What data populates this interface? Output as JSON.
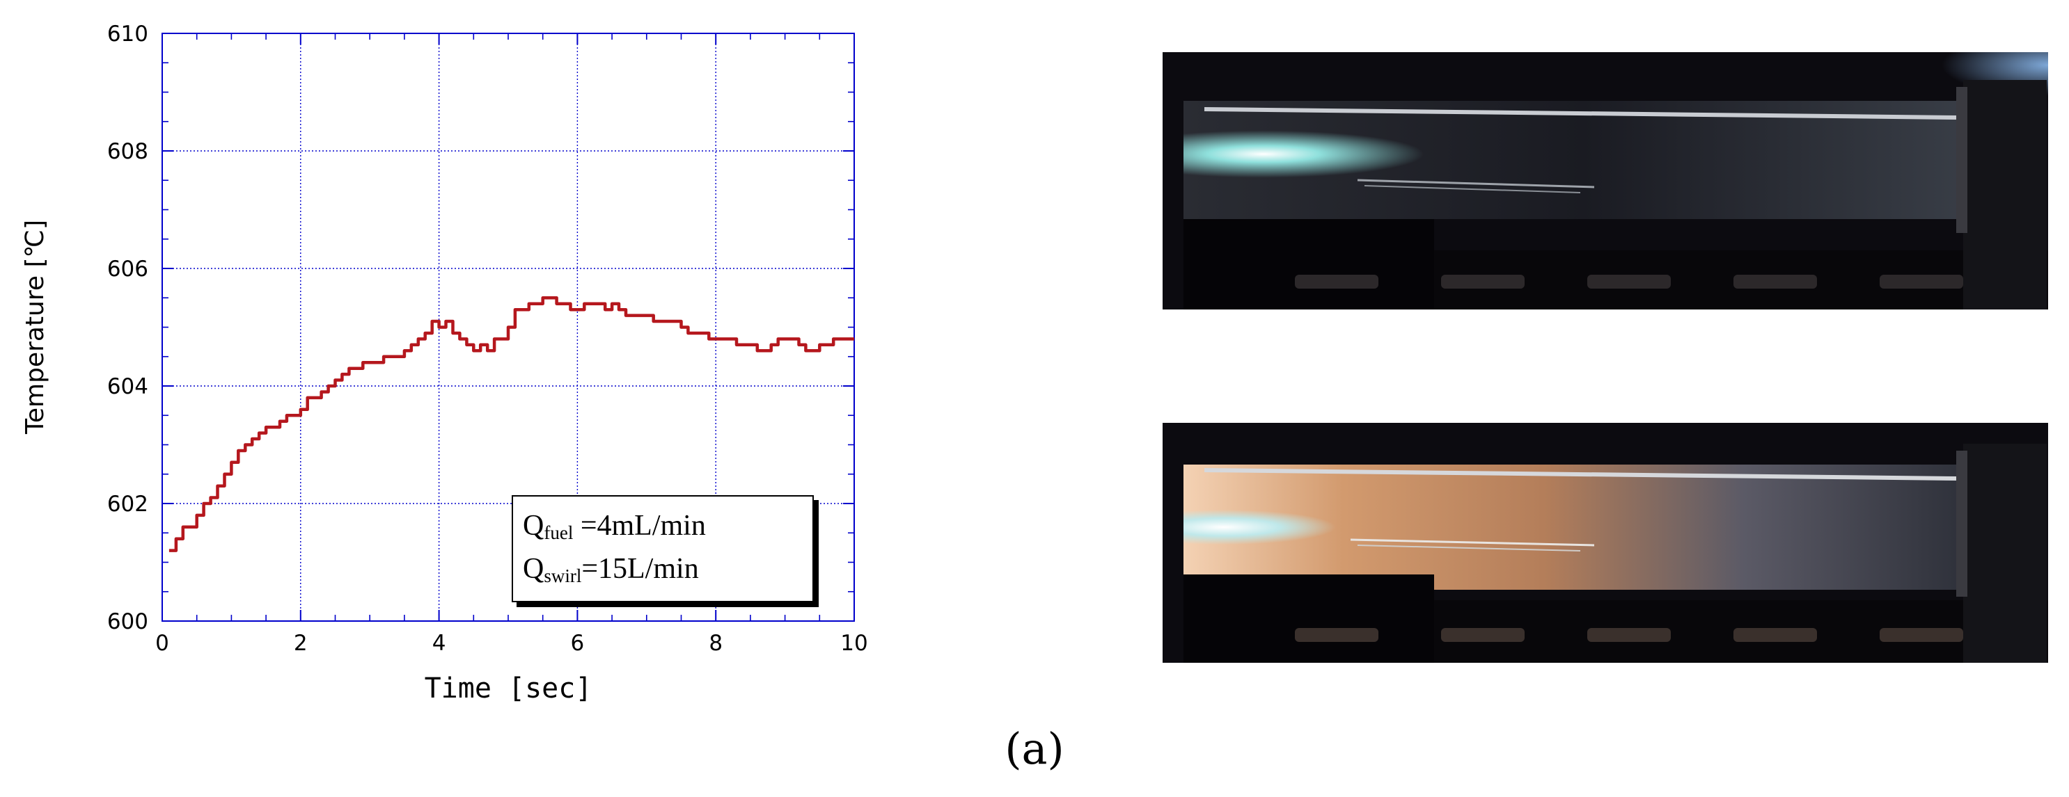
{
  "chart_data": {
    "type": "line",
    "xlabel": "Time [sec]",
    "ylabel": "Temperature [℃]",
    "xlim": [
      0,
      10
    ],
    "ylim": [
      600,
      610
    ],
    "xticks": [
      "0",
      "2",
      "4",
      "6",
      "8",
      "10"
    ],
    "yticks": [
      "600",
      "602",
      "604",
      "606",
      "608",
      "610"
    ],
    "grid": true,
    "line_color": "#b5171d",
    "series": [
      {
        "x": [
          0.1,
          0.2,
          0.3,
          0.4,
          0.5,
          0.6,
          0.7,
          0.8,
          0.9,
          1.0,
          1.1,
          1.2,
          1.3,
          1.4,
          1.5,
          1.6,
          1.7,
          1.8,
          1.9,
          2.0,
          2.1,
          2.2,
          2.3,
          2.4,
          2.5,
          2.6,
          2.7,
          2.8,
          2.9,
          3.0,
          3.1,
          3.2,
          3.3,
          3.4,
          3.5,
          3.6,
          3.7,
          3.8,
          3.9,
          4.0,
          4.1,
          4.2,
          4.3,
          4.4,
          4.5,
          4.6,
          4.7,
          4.8,
          4.9,
          5.0,
          5.1,
          5.2,
          5.3,
          5.4,
          5.5,
          5.6,
          5.7,
          5.8,
          5.9,
          6.0,
          6.1,
          6.2,
          6.3,
          6.4,
          6.5,
          6.6,
          6.7,
          6.8,
          6.9,
          7.0,
          7.1,
          7.2,
          7.3,
          7.4,
          7.5,
          7.6,
          7.7,
          7.8,
          7.9,
          8.0,
          8.1,
          8.2,
          8.3,
          8.4,
          8.5,
          8.6,
          8.7,
          8.8,
          8.9,
          9.0,
          9.1,
          9.2,
          9.3,
          9.4,
          9.5,
          9.6,
          9.7,
          9.8,
          9.9,
          10.0
        ],
        "y": [
          601.2,
          601.4,
          601.6,
          601.6,
          601.8,
          602.0,
          602.1,
          602.3,
          602.5,
          602.7,
          602.9,
          603.0,
          603.1,
          603.2,
          603.3,
          603.3,
          603.4,
          603.5,
          603.5,
          603.6,
          603.8,
          603.8,
          603.9,
          604.0,
          604.1,
          604.2,
          604.3,
          604.3,
          604.4,
          604.4,
          604.4,
          604.5,
          604.5,
          604.5,
          604.6,
          604.7,
          604.8,
          604.9,
          605.1,
          605.0,
          605.1,
          604.9,
          604.8,
          604.7,
          604.6,
          604.7,
          604.6,
          604.8,
          604.8,
          605.0,
          605.3,
          605.3,
          605.4,
          605.4,
          605.5,
          605.5,
          605.4,
          605.4,
          605.3,
          605.3,
          605.4,
          605.4,
          605.4,
          605.3,
          605.4,
          605.3,
          605.2,
          605.2,
          605.2,
          605.2,
          605.1,
          605.1,
          605.1,
          605.1,
          605.0,
          604.9,
          604.9,
          604.9,
          604.8,
          604.8,
          604.8,
          604.8,
          604.7,
          604.7,
          604.7,
          604.6,
          604.6,
          604.7,
          604.8,
          604.8,
          604.8,
          604.7,
          604.6,
          604.6,
          604.7,
          604.7,
          604.8,
          604.8,
          604.8,
          604.8
        ]
      }
    ]
  },
  "legend": {
    "line1_main": "Q",
    "line1_sub": "fuel",
    "line1_rest": " =4mL/min",
    "line2_main": "Q",
    "line2_sub": "swirl",
    "line2_rest": "=15L/min"
  },
  "panel_label": "(a)",
  "photos": [
    {
      "name": "combustor-photo-top",
      "tint": "dark"
    },
    {
      "name": "combustor-photo-bottom",
      "tint": "flame"
    }
  ]
}
